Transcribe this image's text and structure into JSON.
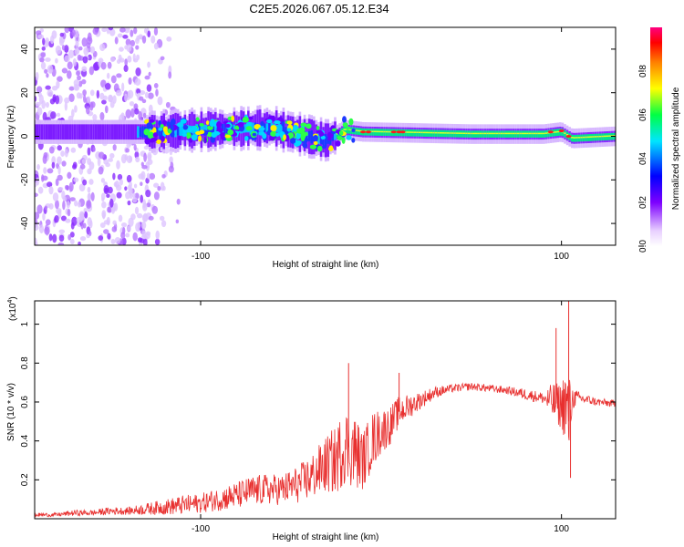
{
  "title": "C2E5.2026.067.05.12.E34",
  "colors": {
    "line": "#e8302f",
    "axis": "#000000",
    "background": "#ffffff"
  },
  "chart_data": [
    {
      "type": "heatmap",
      "xlabel": "Height of straight line (km)",
      "ylabel": "Frequency (Hz)",
      "xlim": [
        -192,
        130
      ],
      "ylim": [
        -50,
        50
      ],
      "xticks": [
        -100,
        100
      ],
      "xtick_labels": [
        "-100",
        "100"
      ],
      "yticks": [
        -40,
        -20,
        0,
        20,
        40
      ],
      "ytick_labels": [
        "-40",
        "-20",
        "0",
        "20",
        "40"
      ],
      "colorbar": {
        "label": "Normalized spectral amplitude",
        "range": [
          0,
          1
        ],
        "ticks": [
          0,
          0.2,
          0.4,
          0.6,
          0.8
        ],
        "tick_labels": [
          "0.0",
          "0.2",
          "0.4",
          "0.6",
          "0.8"
        ],
        "colormap": [
          "#ffffff",
          "#e8d0ff",
          "#7d00ff",
          "#0000ff",
          "#00e5ff",
          "#00ff44",
          "#ffff00",
          "#ff8000",
          "#ff0000",
          "#ff0080"
        ]
      },
      "band_center_hz": [
        {
          "x": -190,
          "y": 2
        },
        {
          "x": -130,
          "y": 2
        },
        {
          "x": -100,
          "y": 3
        },
        {
          "x": -60,
          "y": 4
        },
        {
          "x": -40,
          "y": 0
        },
        {
          "x": -30,
          "y": -2
        },
        {
          "x": -20,
          "y": 3
        },
        {
          "x": -10,
          "y": 2
        },
        {
          "x": 50,
          "y": 1
        },
        {
          "x": 90,
          "y": 1
        },
        {
          "x": 100,
          "y": 2
        },
        {
          "x": 106,
          "y": -1
        },
        {
          "x": 130,
          "y": 0
        }
      ]
    },
    {
      "type": "line",
      "xlabel": "Height of straight line (km)",
      "ylabel": "SNR (10 * v/v)",
      "y_multiplier": "(x10",
      "y_multiplier_exp": "4",
      "xlim": [
        -192,
        130
      ],
      "ylim": [
        0,
        1.12
      ],
      "xticks": [
        -100,
        100
      ],
      "xtick_labels": [
        "-100",
        "100"
      ],
      "yticks": [
        0.2,
        0.4,
        0.6,
        0.8,
        1
      ],
      "ytick_labels": [
        "0.2",
        "0.4",
        "0.6",
        "0.8",
        "1"
      ],
      "series": [
        {
          "name": "SNR",
          "x": [
            -192,
            -180,
            -170,
            -160,
            -150,
            -140,
            -130,
            -120,
            -110,
            -100,
            -90,
            -80,
            -72,
            -65,
            -55,
            -45,
            -38,
            -30,
            -25,
            -20,
            -15,
            -10,
            -5,
            0,
            5,
            10,
            20,
            30,
            40,
            50,
            60,
            70,
            80,
            90,
            95,
            100,
            102,
            104,
            106,
            110,
            120,
            130
          ],
          "values": [
            0.02,
            0.02,
            0.03,
            0.03,
            0.04,
            0.04,
            0.05,
            0.06,
            0.07,
            0.08,
            0.1,
            0.12,
            0.14,
            0.15,
            0.15,
            0.18,
            0.22,
            0.28,
            0.3,
            0.38,
            0.35,
            0.3,
            0.4,
            0.45,
            0.48,
            0.55,
            0.6,
            0.65,
            0.67,
            0.68,
            0.67,
            0.66,
            0.64,
            0.62,
            0.6,
            0.58,
            0.6,
            0.5,
            0.62,
            0.62,
            0.6,
            0.59
          ],
          "noise": [
            0.01,
            0.01,
            0.015,
            0.015,
            0.02,
            0.02,
            0.03,
            0.04,
            0.05,
            0.05,
            0.06,
            0.07,
            0.08,
            0.08,
            0.08,
            0.1,
            0.12,
            0.15,
            0.18,
            0.2,
            0.2,
            0.15,
            0.15,
            0.12,
            0.1,
            0.08,
            0.05,
            0.03,
            0.02,
            0.02,
            0.02,
            0.02,
            0.03,
            0.03,
            0.1,
            0.12,
            0.2,
            0.25,
            0.06,
            0.03,
            0.02,
            0.02
          ]
        }
      ],
      "peaks": [
        {
          "x": -18,
          "y": 0.8
        },
        {
          "x": 10,
          "y": 0.75
        },
        {
          "x": 97,
          "y": 0.98
        },
        {
          "x": 104,
          "y": 1.12
        },
        {
          "x": 105,
          "y": 0.21
        }
      ]
    }
  ]
}
